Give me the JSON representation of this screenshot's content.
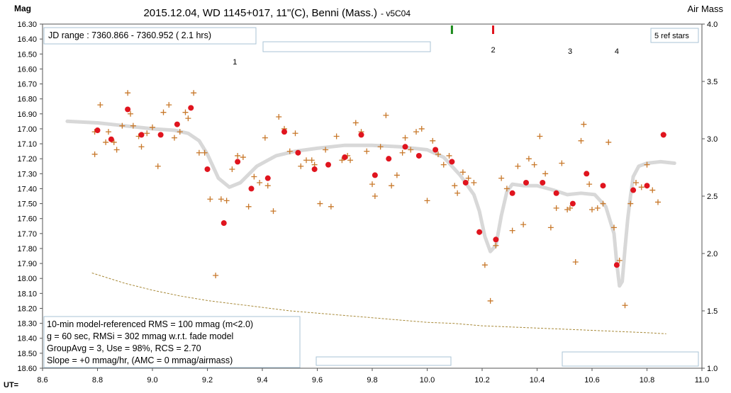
{
  "chart_data": {
    "type": "scatter",
    "title": "2015.12.04, WD 1145+017, 11\"(C), Benni (Mass.)",
    "subtitle": "- v5C04",
    "ylabel": "Mag",
    "y2label": "Air Mass",
    "xlabel": "UT=",
    "xlim": [
      8.6,
      11.0
    ],
    "ylim": [
      16.3,
      18.6
    ],
    "y2lim": [
      1.0,
      4.0
    ],
    "y_inverted": true,
    "grid": false,
    "xticks": [
      "8.6",
      "8.8",
      "9.0",
      "9.2",
      "9.4",
      "9.6",
      "9.8",
      "10.0",
      "10.2",
      "10.4",
      "10.6",
      "10.8",
      "11.0"
    ],
    "yticks": [
      "16.30",
      "16.40",
      "16.50",
      "16.60",
      "16.70",
      "16.80",
      "16.90",
      "17.00",
      "17.10",
      "17.20",
      "17.30",
      "17.40",
      "17.50",
      "17.60",
      "17.70",
      "17.80",
      "17.90",
      "18.00",
      "18.10",
      "18.20",
      "18.30",
      "18.40",
      "18.50",
      "18.60"
    ],
    "y2ticks": [
      "1.0",
      "1.5",
      "2.0",
      "2.5",
      "3.0",
      "3.5",
      "4.0"
    ],
    "jd_range": "JD range : 7360.866 - 7360.952 ( 2.1 hrs)",
    "ref_stars": "5 ref stars",
    "dip_labels": [
      {
        "text": "1",
        "x": 9.3
      },
      {
        "text": "2",
        "x": 10.24
      },
      {
        "text": "3",
        "x": 10.52
      },
      {
        "text": "4",
        "x": 10.69
      }
    ],
    "markers": [
      {
        "x": 10.09,
        "color": "#1a8a1a"
      },
      {
        "x": 10.24,
        "color": "#e0141e"
      }
    ],
    "stats": [
      "10-min model-referenced RMS = 100 mmag (m<2.0)",
      "g = 60 sec, RMSi = 302 mmag w.r.t. fade model",
      "GroupAvg = 3, Use = 98%, RCS = 2.70",
      "Slope = +0 mmag/hr, (AMC = 0 mmag/airmass)"
    ],
    "series": [
      {
        "marker": "plus",
        "color": "#c8782a",
        "points": [
          [
            8.79,
            17.02
          ],
          [
            8.79,
            17.17
          ],
          [
            8.81,
            16.84
          ],
          [
            8.83,
            17.09
          ],
          [
            8.84,
            17.02
          ],
          [
            8.86,
            17.09
          ],
          [
            8.87,
            17.14
          ],
          [
            8.89,
            16.98
          ],
          [
            8.91,
            16.76
          ],
          [
            8.92,
            16.9
          ],
          [
            8.93,
            16.98
          ],
          [
            8.95,
            17.05
          ],
          [
            8.96,
            17.12
          ],
          [
            8.98,
            17.03
          ],
          [
            9.0,
            16.99
          ],
          [
            9.02,
            17.25
          ],
          [
            9.04,
            16.89
          ],
          [
            9.06,
            16.84
          ],
          [
            9.08,
            17.06
          ],
          [
            9.1,
            17.02
          ],
          [
            9.12,
            16.89
          ],
          [
            9.13,
            16.93
          ],
          [
            9.15,
            16.76
          ],
          [
            9.17,
            17.16
          ],
          [
            9.19,
            17.16
          ],
          [
            9.21,
            17.47
          ],
          [
            9.23,
            17.98
          ],
          [
            9.25,
            17.47
          ],
          [
            9.27,
            17.48
          ],
          [
            9.29,
            17.27
          ],
          [
            9.31,
            17.18
          ],
          [
            9.33,
            17.19
          ],
          [
            9.35,
            17.52
          ],
          [
            9.37,
            17.32
          ],
          [
            9.39,
            17.36
          ],
          [
            9.41,
            17.06
          ],
          [
            9.42,
            17.38
          ],
          [
            9.44,
            17.55
          ],
          [
            9.46,
            16.92
          ],
          [
            9.48,
            17.0
          ],
          [
            9.5,
            17.15
          ],
          [
            9.52,
            17.03
          ],
          [
            9.54,
            17.25
          ],
          [
            9.56,
            17.21
          ],
          [
            9.58,
            17.21
          ],
          [
            9.59,
            17.24
          ],
          [
            9.61,
            17.5
          ],
          [
            9.63,
            17.14
          ],
          [
            9.65,
            17.52
          ],
          [
            9.67,
            17.05
          ],
          [
            9.69,
            17.21
          ],
          [
            9.71,
            17.18
          ],
          [
            9.72,
            17.21
          ],
          [
            9.74,
            16.96
          ],
          [
            9.76,
            17.02
          ],
          [
            9.78,
            17.15
          ],
          [
            9.8,
            17.37
          ],
          [
            9.81,
            17.45
          ],
          [
            9.83,
            17.12
          ],
          [
            9.85,
            16.91
          ],
          [
            9.87,
            17.38
          ],
          [
            9.89,
            17.31
          ],
          [
            9.91,
            17.16
          ],
          [
            9.92,
            17.06
          ],
          [
            9.94,
            17.14
          ],
          [
            9.96,
            17.02
          ],
          [
            9.98,
            17.0
          ],
          [
            10.0,
            17.48
          ],
          [
            10.02,
            17.08
          ],
          [
            10.04,
            17.17
          ],
          [
            10.06,
            17.24
          ],
          [
            10.08,
            17.18
          ],
          [
            10.1,
            17.38
          ],
          [
            10.11,
            17.43
          ],
          [
            10.13,
            17.29
          ],
          [
            10.15,
            17.33
          ],
          [
            10.17,
            17.36
          ],
          [
            10.19,
            17.69
          ],
          [
            10.21,
            17.91
          ],
          [
            10.23,
            18.15
          ],
          [
            10.25,
            17.78
          ],
          [
            10.27,
            17.33
          ],
          [
            10.29,
            17.4
          ],
          [
            10.31,
            17.68
          ],
          [
            10.33,
            17.25
          ],
          [
            10.35,
            17.64
          ],
          [
            10.37,
            17.2
          ],
          [
            10.39,
            17.24
          ],
          [
            10.41,
            17.05
          ],
          [
            10.43,
            17.3
          ],
          [
            10.45,
            17.66
          ],
          [
            10.47,
            17.53
          ],
          [
            10.49,
            17.23
          ],
          [
            10.51,
            17.54
          ],
          [
            10.52,
            17.53
          ],
          [
            10.54,
            17.89
          ],
          [
            10.56,
            17.08
          ],
          [
            10.57,
            16.97
          ],
          [
            10.59,
            17.37
          ],
          [
            10.6,
            17.54
          ],
          [
            10.62,
            17.53
          ],
          [
            10.64,
            17.5
          ],
          [
            10.66,
            17.09
          ],
          [
            10.68,
            17.66
          ],
          [
            10.7,
            17.88
          ],
          [
            10.72,
            18.18
          ],
          [
            10.74,
            17.5
          ],
          [
            10.76,
            17.36
          ],
          [
            10.78,
            17.39
          ],
          [
            10.8,
            17.24
          ],
          [
            10.82,
            17.41
          ],
          [
            10.84,
            17.49
          ],
          [
            10.86,
            17.04
          ]
        ]
      },
      {
        "marker": "dot",
        "color": "#e0141e",
        "points": [
          [
            8.8,
            17.01
          ],
          [
            8.85,
            17.07
          ],
          [
            8.91,
            16.87
          ],
          [
            8.96,
            17.04
          ],
          [
            9.03,
            17.04
          ],
          [
            9.09,
            16.97
          ],
          [
            9.14,
            16.86
          ],
          [
            9.2,
            17.27
          ],
          [
            9.26,
            17.63
          ],
          [
            9.31,
            17.22
          ],
          [
            9.36,
            17.4
          ],
          [
            9.42,
            17.33
          ],
          [
            9.48,
            17.02
          ],
          [
            9.53,
            17.16
          ],
          [
            9.59,
            17.27
          ],
          [
            9.64,
            17.24
          ],
          [
            9.7,
            17.19
          ],
          [
            9.76,
            17.04
          ],
          [
            9.81,
            17.31
          ],
          [
            9.86,
            17.2
          ],
          [
            9.92,
            17.12
          ],
          [
            9.97,
            17.18
          ],
          [
            10.03,
            17.14
          ],
          [
            10.09,
            17.22
          ],
          [
            10.14,
            17.36
          ],
          [
            10.19,
            17.69
          ],
          [
            10.25,
            17.74
          ],
          [
            10.31,
            17.43
          ],
          [
            10.36,
            17.36
          ],
          [
            10.42,
            17.36
          ],
          [
            10.47,
            17.43
          ],
          [
            10.53,
            17.5
          ],
          [
            10.58,
            17.3
          ],
          [
            10.64,
            17.38
          ],
          [
            10.69,
            17.91
          ],
          [
            10.75,
            17.41
          ],
          [
            10.8,
            17.38
          ],
          [
            10.86,
            17.04
          ]
        ]
      },
      {
        "name": "model",
        "type": "line",
        "color": "#d8d8d8",
        "points": [
          [
            8.69,
            16.95
          ],
          [
            8.8,
            16.96
          ],
          [
            8.9,
            16.98
          ],
          [
            9.0,
            17.0
          ],
          [
            9.08,
            17.01
          ],
          [
            9.13,
            17.03
          ],
          [
            9.17,
            17.08
          ],
          [
            9.2,
            17.17
          ],
          [
            9.24,
            17.33
          ],
          [
            9.28,
            17.39
          ],
          [
            9.32,
            17.36
          ],
          [
            9.38,
            17.25
          ],
          [
            9.45,
            17.18
          ],
          [
            9.52,
            17.15
          ],
          [
            9.6,
            17.13
          ],
          [
            9.7,
            17.11
          ],
          [
            9.8,
            17.11
          ],
          [
            9.9,
            17.12
          ],
          [
            10.0,
            17.14
          ],
          [
            10.06,
            17.19
          ],
          [
            10.12,
            17.31
          ],
          [
            10.17,
            17.44
          ],
          [
            10.19,
            17.55
          ],
          [
            10.21,
            17.72
          ],
          [
            10.23,
            17.82
          ],
          [
            10.25,
            17.78
          ],
          [
            10.27,
            17.58
          ],
          [
            10.29,
            17.42
          ],
          [
            10.31,
            17.37
          ],
          [
            10.35,
            17.38
          ],
          [
            10.4,
            17.38
          ],
          [
            10.46,
            17.41
          ],
          [
            10.51,
            17.44
          ],
          [
            10.56,
            17.43
          ],
          [
            10.61,
            17.44
          ],
          [
            10.65,
            17.52
          ],
          [
            10.68,
            17.7
          ],
          [
            10.69,
            17.9
          ],
          [
            10.7,
            18.05
          ],
          [
            10.71,
            18.02
          ],
          [
            10.72,
            17.8
          ],
          [
            10.73,
            17.6
          ],
          [
            10.74,
            17.45
          ],
          [
            10.75,
            17.32
          ],
          [
            10.77,
            17.25
          ],
          [
            10.8,
            17.23
          ],
          [
            10.85,
            17.22
          ],
          [
            10.9,
            17.23
          ]
        ]
      },
      {
        "name": "airmass",
        "type": "line",
        "color": "#a88a3a",
        "points": [
          [
            8.78,
            1.83
          ],
          [
            8.9,
            1.74
          ],
          [
            9.0,
            1.68
          ],
          [
            9.1,
            1.63
          ],
          [
            9.2,
            1.59
          ],
          [
            9.3,
            1.56
          ],
          [
            9.4,
            1.53
          ],
          [
            9.5,
            1.5
          ],
          [
            9.6,
            1.48
          ],
          [
            9.7,
            1.46
          ],
          [
            9.8,
            1.44
          ],
          [
            9.9,
            1.42
          ],
          [
            10.0,
            1.4
          ],
          [
            10.1,
            1.39
          ],
          [
            10.2,
            1.37
          ],
          [
            10.3,
            1.36
          ],
          [
            10.4,
            1.35
          ],
          [
            10.5,
            1.34
          ],
          [
            10.6,
            1.33
          ],
          [
            10.7,
            1.32
          ],
          [
            10.8,
            1.31
          ],
          [
            10.87,
            1.3
          ]
        ]
      }
    ]
  }
}
